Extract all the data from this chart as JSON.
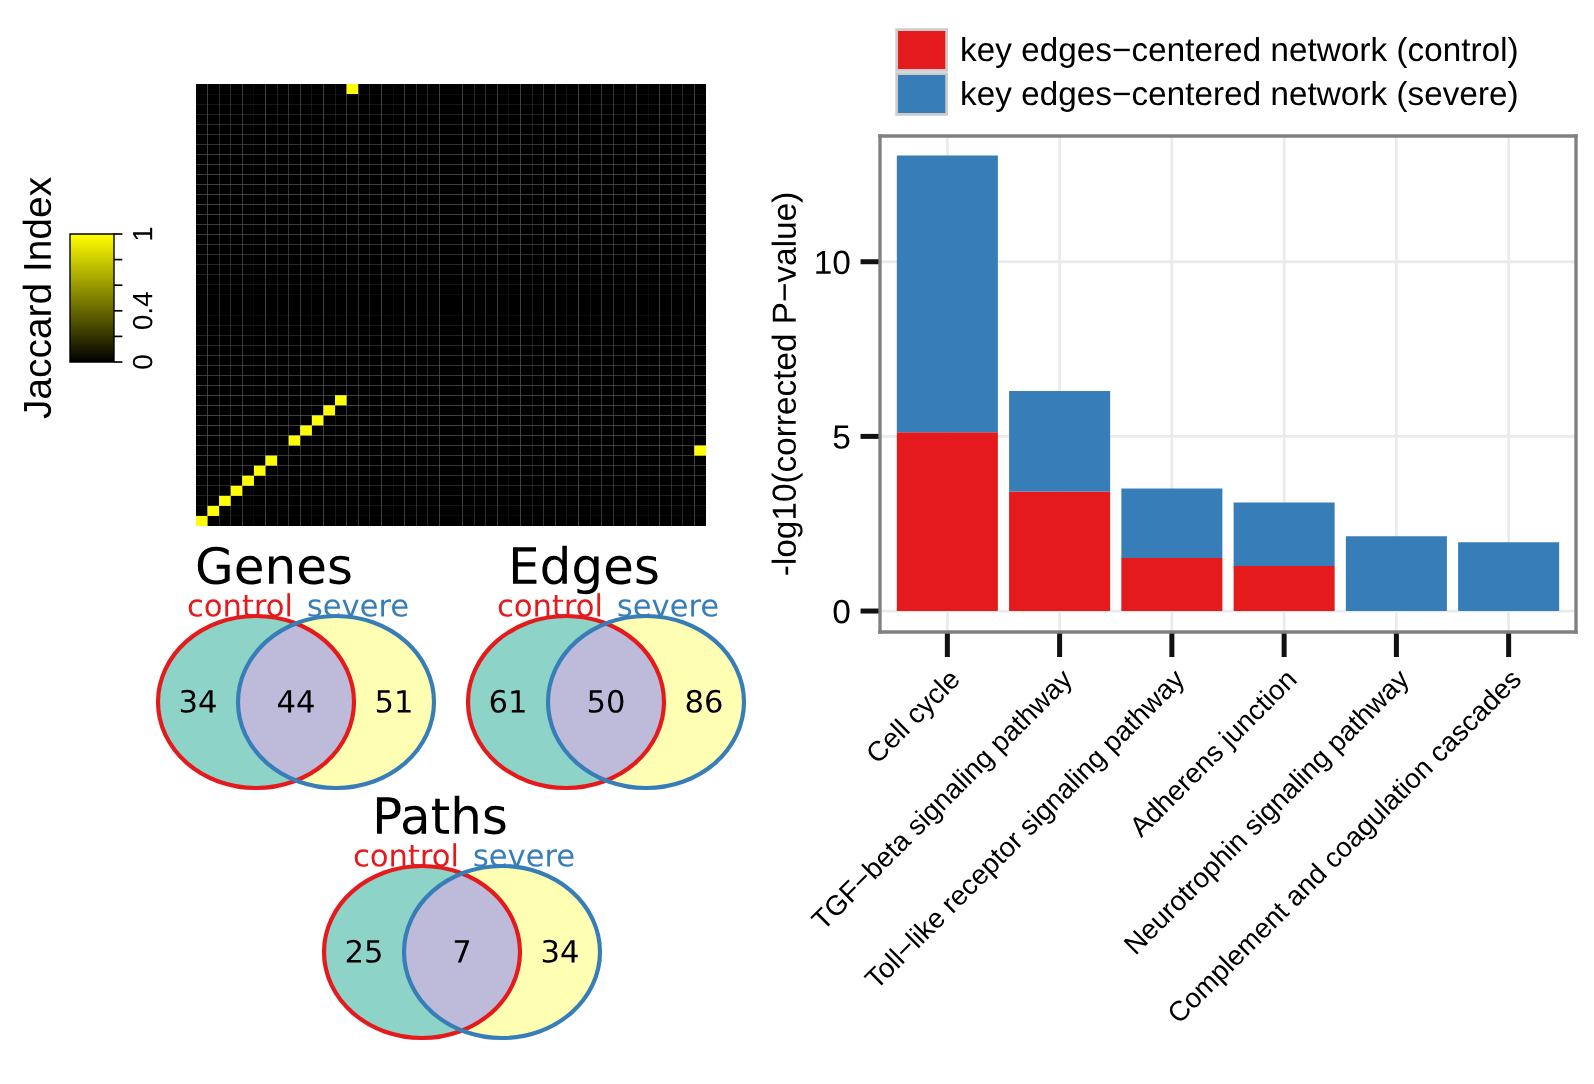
{
  "chart_data": [
    {
      "type": "heatmap",
      "clabel": "Jaccard Index",
      "colors": [
        "#000000",
        "#ffff00"
      ],
      "clim": [
        0,
        1
      ],
      "cticks": [
        0,
        {
          "value": 0.2,
          "label": null
        },
        0.4,
        {
          "value": 0.6,
          "label": null
        },
        {
          "value": 0.8,
          "label": null
        },
        1
      ],
      "categories": [
        null,
        null,
        null,
        null,
        null,
        null,
        null,
        null,
        null,
        null,
        null,
        null,
        null,
        null,
        null,
        null,
        null,
        null,
        null,
        null,
        null,
        null,
        null,
        null,
        null,
        null,
        null,
        null,
        null,
        null,
        null,
        null,
        null,
        null,
        null,
        null,
        null,
        null,
        null,
        null,
        null,
        null,
        null,
        null
      ],
      "y_categories": [
        null,
        null,
        null,
        null,
        null,
        null,
        null,
        null,
        null,
        null,
        null,
        null,
        null,
        null,
        null,
        null,
        null,
        null,
        null,
        null,
        null,
        null,
        null,
        null,
        null,
        null,
        null,
        null,
        null,
        null,
        null,
        null,
        null,
        null,
        null,
        null,
        null,
        null,
        null,
        null,
        null,
        null,
        null,
        null
      ],
      "cells": [
        [
          0,
          0,
          0,
          0,
          0,
          0,
          0,
          0,
          0,
          0,
          0,
          0,
          0,
          1,
          0,
          0,
          0,
          0,
          0,
          0,
          0,
          0,
          0,
          0,
          0,
          0,
          0,
          0,
          0,
          0,
          0,
          0,
          0,
          0,
          0,
          0,
          0,
          0,
          0,
          0,
          0,
          0,
          0,
          0
        ],
        [
          0,
          0,
          0,
          0,
          0,
          0,
          0,
          0,
          0,
          0,
          0,
          0,
          0,
          0,
          0,
          0,
          0,
          0,
          0,
          0,
          0,
          0,
          0,
          0,
          0,
          0,
          0,
          0,
          0,
          0,
          0,
          0,
          0,
          0,
          0,
          0,
          0,
          0,
          0,
          0,
          0,
          0,
          0,
          0
        ],
        [
          0,
          0,
          0,
          0,
          0,
          0,
          0,
          0,
          0,
          0,
          0,
          0,
          0,
          0,
          0,
          0,
          0,
          0,
          0,
          0,
          0,
          0,
          0,
          0,
          0,
          0,
          0,
          0,
          0,
          0,
          0,
          0,
          0,
          0,
          0,
          0,
          0,
          0,
          0,
          0,
          0,
          0,
          0,
          0
        ],
        [
          0,
          0,
          0,
          0,
          0,
          0,
          0,
          0,
          0,
          0,
          0,
          0,
          0,
          0,
          0,
          0,
          0,
          0,
          0,
          0,
          0,
          0,
          0,
          0,
          0,
          0,
          0,
          0,
          0,
          0,
          0,
          0,
          0,
          0,
          0,
          0,
          0,
          0,
          0,
          0,
          0,
          0,
          0,
          0
        ],
        [
          0,
          0,
          0,
          0,
          0,
          0,
          0,
          0,
          0,
          0,
          0,
          0,
          0,
          0,
          0,
          0,
          0,
          0,
          0,
          0,
          0,
          0,
          0,
          0,
          0,
          0,
          0,
          0,
          0,
          0,
          0,
          0,
          0,
          0,
          0,
          0,
          0,
          0,
          0,
          0,
          0,
          0,
          0,
          0
        ],
        [
          0,
          0,
          0,
          0,
          0,
          0,
          0,
          0,
          0,
          0,
          0,
          0,
          0,
          0,
          0,
          0,
          0,
          0,
          0,
          0,
          0,
          0,
          0,
          0,
          0,
          0,
          0,
          0,
          0,
          0,
          0,
          0,
          0,
          0,
          0,
          0,
          0,
          0,
          0,
          0,
          0,
          0,
          0,
          0
        ],
        [
          0,
          0,
          0,
          0,
          0,
          0,
          0,
          0,
          0,
          0,
          0,
          0,
          0,
          0,
          0,
          0,
          0,
          0,
          0,
          0,
          0,
          0,
          0,
          0,
          0,
          0,
          0,
          0,
          0,
          0,
          0,
          0,
          0,
          0,
          0,
          0,
          0,
          0,
          0,
          0,
          0,
          0,
          0,
          0
        ],
        [
          0,
          0,
          0,
          0,
          0,
          0,
          0,
          0,
          0,
          0,
          0,
          0,
          0,
          0,
          0,
          0,
          0,
          0,
          0,
          0,
          0,
          0,
          0,
          0,
          0,
          0,
          0,
          0,
          0,
          0,
          0,
          0,
          0,
          0,
          0,
          0,
          0,
          0,
          0,
          0,
          0,
          0,
          0,
          0
        ],
        [
          0,
          0,
          0,
          0,
          0,
          0,
          0,
          0,
          0,
          0,
          0,
          0,
          0,
          0,
          0,
          0,
          0,
          0,
          0,
          0,
          0,
          0,
          0,
          0,
          0,
          0,
          0,
          0,
          0,
          0,
          0,
          0,
          0,
          0,
          0,
          0,
          0,
          0,
          0,
          0,
          0,
          0,
          0,
          0
        ],
        [
          0,
          0,
          0,
          0,
          0,
          0,
          0,
          0,
          0,
          0,
          0,
          0,
          0,
          0,
          0,
          0,
          0,
          0,
          0,
          0,
          0,
          0,
          0,
          0,
          0,
          0,
          0,
          0,
          0,
          0,
          0,
          0,
          0,
          0,
          0,
          0,
          0,
          0,
          0,
          0,
          0,
          0,
          0,
          0
        ],
        [
          0,
          0,
          0,
          0,
          0,
          0,
          0,
          0,
          0,
          0,
          0,
          0,
          0,
          0,
          0,
          0,
          0,
          0,
          0,
          0,
          0,
          0,
          0,
          0,
          0,
          0,
          0,
          0,
          0,
          0,
          0,
          0,
          0,
          0,
          0,
          0,
          0,
          0,
          0,
          0,
          0,
          0,
          0,
          0
        ],
        [
          0,
          0,
          0,
          0,
          0,
          0,
          0,
          0,
          0,
          0,
          0,
          0,
          0,
          0,
          0,
          0,
          0,
          0,
          0,
          0,
          0,
          0,
          0,
          0,
          0,
          0,
          0,
          0,
          0,
          0,
          0,
          0,
          0,
          0,
          0,
          0,
          0,
          0,
          0,
          0,
          0,
          0,
          0,
          0
        ],
        [
          0,
          0,
          0,
          0,
          0,
          0,
          0,
          0,
          0,
          0,
          0,
          0,
          0,
          0,
          0,
          0,
          0,
          0,
          0,
          0,
          0,
          0,
          0,
          0,
          0,
          0,
          0,
          0,
          0,
          0,
          0,
          0,
          0,
          0,
          0,
          0,
          0,
          0,
          0,
          0,
          0,
          0,
          0,
          0
        ],
        [
          0,
          0,
          0,
          0,
          0,
          0,
          0,
          0,
          0,
          0,
          0,
          0,
          0,
          0,
          0,
          0,
          0,
          0,
          0,
          0,
          0,
          0,
          0,
          0,
          0,
          0,
          0,
          0,
          0,
          0,
          0,
          0,
          0,
          0,
          0,
          0,
          0,
          0,
          0,
          0,
          0,
          0,
          0,
          0
        ],
        [
          0,
          0,
          0,
          0,
          0,
          0,
          0,
          0,
          0,
          0,
          0,
          0,
          0,
          0,
          0,
          0,
          0,
          0,
          0,
          0,
          0,
          0,
          0,
          0,
          0,
          0,
          0,
          0,
          0,
          0,
          0,
          0,
          0,
          0,
          0,
          0,
          0,
          0,
          0,
          0,
          0,
          0,
          0,
          0
        ],
        [
          0,
          0,
          0,
          0,
          0,
          0,
          0,
          0,
          0,
          0,
          0,
          0,
          0,
          0,
          0,
          0,
          0,
          0,
          0,
          0,
          0,
          0,
          0,
          0,
          0,
          0,
          0,
          0,
          0,
          0,
          0,
          0,
          0,
          0,
          0,
          0,
          0,
          0,
          0,
          0,
          0,
          0,
          0,
          0
        ],
        [
          0,
          0,
          0,
          0,
          0,
          0,
          0,
          0,
          0,
          0,
          0,
          0,
          0,
          0,
          0,
          0,
          0,
          0,
          0,
          0,
          0,
          0,
          0,
          0,
          0,
          0,
          0,
          0,
          0,
          0,
          0,
          0,
          0,
          0,
          0,
          0,
          0,
          0,
          0,
          0,
          0,
          0,
          0,
          0
        ],
        [
          0,
          0,
          0,
          0,
          0,
          0,
          0,
          0,
          0,
          0,
          0,
          0,
          0,
          0,
          0,
          0,
          0,
          0,
          0,
          0,
          0,
          0,
          0,
          0,
          0,
          0,
          0,
          0,
          0,
          0,
          0,
          0,
          0,
          0,
          0,
          0,
          0,
          0,
          0,
          0,
          0,
          0,
          0,
          0
        ],
        [
          0,
          0,
          0,
          0,
          0,
          0,
          0,
          0,
          0,
          0,
          0,
          0,
          0,
          0,
          0,
          0,
          0,
          0,
          0,
          0,
          0,
          0,
          0,
          0,
          0,
          0,
          0,
          0,
          0,
          0,
          0,
          0,
          0,
          0,
          0,
          0,
          0,
          0,
          0,
          0,
          0,
          0,
          0,
          0
        ],
        [
          0,
          0,
          0,
          0,
          0,
          0,
          0,
          0,
          0,
          0,
          0,
          0,
          0,
          0,
          0,
          0,
          0,
          0,
          0,
          0,
          0,
          0,
          0,
          0,
          0,
          0,
          0,
          0,
          0,
          0,
          0,
          0,
          0,
          0,
          0,
          0,
          0,
          0,
          0,
          0,
          0,
          0,
          0,
          0
        ],
        [
          0,
          0,
          0,
          0,
          0,
          0,
          0,
          0,
          0,
          0,
          0,
          0,
          0,
          0,
          0,
          0,
          0,
          0,
          0,
          0,
          0,
          0,
          0,
          0,
          0,
          0,
          0,
          0,
          0,
          0,
          0,
          0,
          0,
          0,
          0,
          0,
          0,
          0,
          0,
          0,
          0,
          0,
          0,
          0
        ],
        [
          0,
          0,
          0,
          0,
          0,
          0,
          0,
          0,
          0,
          0,
          0,
          0,
          0,
          0,
          0,
          0,
          0,
          0,
          0,
          0,
          0,
          0,
          0,
          0,
          0,
          0,
          0,
          0,
          0,
          0,
          0,
          0,
          0,
          0,
          0,
          0,
          0,
          0,
          0,
          0,
          0,
          0,
          0,
          0
        ],
        [
          0,
          0,
          0,
          0,
          0,
          0,
          0,
          0,
          0,
          0,
          0,
          0,
          0,
          0,
          0,
          0,
          0,
          0,
          0,
          0,
          0,
          0,
          0,
          0,
          0,
          0,
          0,
          0,
          0,
          0,
          0,
          0,
          0,
          0,
          0,
          0,
          0,
          0,
          0,
          0,
          0,
          0,
          0,
          0
        ],
        [
          0,
          0,
          0,
          0,
          0,
          0,
          0,
          0,
          0,
          0,
          0,
          0,
          0,
          0,
          0,
          0,
          0,
          0,
          0,
          0,
          0,
          0,
          0,
          0,
          0,
          0,
          0,
          0,
          0,
          0,
          0,
          0,
          0,
          0,
          0,
          0,
          0,
          0,
          0,
          0,
          0,
          0,
          0,
          0
        ],
        [
          0,
          0,
          0,
          0,
          0,
          0,
          0,
          0,
          0,
          0,
          0,
          0,
          0,
          0,
          0,
          0,
          0,
          0,
          0,
          0,
          0,
          0,
          0,
          0,
          0,
          0,
          0,
          0,
          0,
          0,
          0,
          0,
          0,
          0,
          0,
          0,
          0,
          0,
          0,
          0,
          0,
          0,
          0,
          0
        ],
        [
          0,
          0,
          0,
          0,
          0,
          0,
          0,
          0,
          0,
          0,
          0,
          0,
          0,
          0,
          0,
          0,
          0,
          0,
          0,
          0,
          0,
          0,
          0,
          0,
          0,
          0,
          0,
          0,
          0,
          0,
          0,
          0,
          0,
          0,
          0,
          0,
          0,
          0,
          0,
          0,
          0,
          0,
          0,
          0
        ],
        [
          0,
          0,
          0,
          0,
          0,
          0,
          0,
          0,
          0,
          0,
          0,
          0,
          0,
          0,
          0,
          0,
          0,
          0,
          0,
          0,
          0,
          0,
          0,
          0,
          0,
          0,
          0,
          0,
          0,
          0,
          0,
          0,
          0,
          0,
          0,
          0,
          0,
          0,
          0,
          0,
          0,
          0,
          0,
          0
        ],
        [
          0,
          0,
          0,
          0,
          0,
          0,
          0,
          0,
          0,
          0,
          0,
          0,
          0,
          0,
          0,
          0,
          0,
          0,
          0,
          0,
          0,
          0,
          0,
          0,
          0,
          0,
          0,
          0,
          0,
          0,
          0,
          0,
          0,
          0,
          0,
          0,
          0,
          0,
          0,
          0,
          0,
          0,
          0,
          0
        ],
        [
          0,
          0,
          0,
          0,
          0,
          0,
          0,
          0,
          0,
          0,
          0,
          0,
          0,
          0,
          0,
          0,
          0,
          0,
          0,
          0,
          0,
          0,
          0,
          0,
          0,
          0,
          0,
          0,
          0,
          0,
          0,
          0,
          0,
          0,
          0,
          0,
          0,
          0,
          0,
          0,
          0,
          0,
          0,
          0
        ],
        [
          0,
          0,
          0,
          0,
          0,
          0,
          0,
          0,
          0,
          0,
          0,
          0,
          0,
          0,
          0,
          0,
          0,
          0,
          0,
          0,
          0,
          0,
          0,
          0,
          0,
          0,
          0,
          0,
          0,
          0,
          0,
          0,
          0,
          0,
          0,
          0,
          0,
          0,
          0,
          0,
          0,
          0,
          0,
          0
        ],
        [
          0,
          0,
          0,
          0,
          0,
          0,
          0,
          0,
          0,
          0,
          0,
          0,
          0,
          0,
          0,
          0,
          0,
          0,
          0,
          0,
          0,
          0,
          0,
          0,
          0,
          0,
          0,
          0,
          0,
          0,
          0,
          0,
          0,
          0,
          0,
          0,
          0,
          0,
          0,
          0,
          0,
          0,
          0,
          0
        ],
        [
          0,
          0,
          0,
          0,
          0,
          0,
          0,
          0,
          0,
          0,
          0,
          0,
          1,
          0,
          0,
          0,
          0,
          0,
          0,
          0,
          0,
          0,
          0,
          0,
          0,
          0,
          0,
          0,
          0,
          0,
          0,
          0,
          0,
          0,
          0,
          0,
          0,
          0,
          0,
          0,
          0,
          0,
          0,
          0
        ],
        [
          0,
          0,
          0,
          0,
          0,
          0,
          0,
          0,
          0,
          0,
          0,
          1,
          0,
          0,
          0,
          0,
          0,
          0,
          0,
          0,
          0,
          0,
          0,
          0,
          0,
          0,
          0,
          0,
          0,
          0,
          0,
          0,
          0,
          0,
          0,
          0,
          0,
          0,
          0,
          0,
          0,
          0,
          0,
          0
        ],
        [
          0,
          0,
          0,
          0,
          0,
          0,
          0,
          0,
          0,
          0,
          1,
          0,
          0,
          0,
          0,
          0,
          0,
          0,
          0,
          0,
          0,
          0,
          0,
          0,
          0,
          0,
          0,
          0,
          0,
          0,
          0,
          0,
          0,
          0,
          0,
          0,
          0,
          0,
          0,
          0,
          0,
          0,
          0,
          0
        ],
        [
          0,
          0,
          0,
          0,
          0,
          0,
          0,
          0,
          0,
          1,
          0,
          0,
          0,
          0,
          0,
          0,
          0,
          0,
          0,
          0,
          0,
          0,
          0,
          0,
          0,
          0,
          0,
          0,
          0,
          0,
          0,
          0,
          0,
          0,
          0,
          0,
          0,
          0,
          0,
          0,
          0,
          0,
          0,
          0
        ],
        [
          0,
          0,
          0,
          0,
          0,
          0,
          0,
          0,
          1,
          0,
          0,
          0,
          0,
          0,
          0,
          0,
          0,
          0,
          0,
          0,
          0,
          0,
          0,
          0,
          0,
          0,
          0,
          0,
          0,
          0,
          0,
          0,
          0,
          0,
          0,
          0,
          0,
          0,
          0,
          0,
          0,
          0,
          0,
          0
        ],
        [
          0,
          0,
          0,
          0,
          0,
          0,
          0,
          0,
          0,
          0,
          0,
          0,
          0,
          0,
          0,
          0,
          0,
          0,
          0,
          0,
          0,
          0,
          0,
          0,
          0,
          0,
          0,
          0,
          0,
          0,
          0,
          0,
          0,
          0,
          0,
          0,
          0,
          0,
          0,
          0,
          0,
          0,
          0,
          1
        ],
        [
          0,
          0,
          0,
          0,
          0,
          0,
          1,
          0,
          0,
          0,
          0,
          0,
          0,
          0,
          0,
          0,
          0,
          0,
          0,
          0,
          0,
          0,
          0,
          0,
          0,
          0,
          0,
          0,
          0,
          0,
          0,
          0,
          0,
          0,
          0,
          0,
          0,
          0,
          0,
          0,
          0,
          0,
          0,
          0
        ],
        [
          0,
          0,
          0,
          0,
          0,
          1,
          0,
          0,
          0,
          0,
          0,
          0,
          0,
          0,
          0,
          0,
          0,
          0,
          0,
          0,
          0,
          0,
          0,
          0,
          0,
          0,
          0,
          0,
          0,
          0,
          0,
          0,
          0,
          0,
          0,
          0,
          0,
          0,
          0,
          0,
          0,
          0,
          0,
          0
        ],
        [
          0,
          0,
          0,
          0,
          1,
          0,
          0,
          0,
          0,
          0,
          0,
          0,
          0,
          0,
          0,
          0,
          0,
          0,
          0,
          0,
          0,
          0,
          0,
          0,
          0,
          0,
          0,
          0,
          0,
          0,
          0,
          0,
          0,
          0,
          0,
          0,
          0,
          0,
          0,
          0,
          0,
          0,
          0,
          0
        ],
        [
          0,
          0,
          0,
          1,
          0,
          0,
          0,
          0,
          0,
          0,
          0,
          0,
          0,
          0,
          0,
          0,
          0,
          0,
          0,
          0,
          0,
          0,
          0,
          0,
          0,
          0,
          0,
          0,
          0,
          0,
          0,
          0,
          0,
          0,
          0,
          0,
          0,
          0,
          0,
          0,
          0,
          0,
          0,
          0
        ],
        [
          0,
          0,
          1,
          0,
          0,
          0,
          0,
          0,
          0,
          0,
          0,
          0,
          0,
          0,
          0,
          0,
          0,
          0,
          0,
          0,
          0,
          0,
          0,
          0,
          0,
          0,
          0,
          0,
          0,
          0,
          0,
          0,
          0,
          0,
          0,
          0,
          0,
          0,
          0,
          0,
          0,
          0,
          0,
          0
        ],
        [
          0,
          1,
          0,
          0,
          0,
          0,
          0,
          0,
          0,
          0,
          0,
          0,
          0,
          0,
          0,
          0,
          0,
          0,
          0,
          0,
          0,
          0,
          0,
          0,
          0,
          0,
          0,
          0,
          0,
          0,
          0,
          0,
          0,
          0,
          0,
          0,
          0,
          0,
          0,
          0,
          0,
          0,
          0,
          0
        ],
        [
          1,
          0,
          0,
          0,
          0,
          0,
          0,
          0,
          0,
          0,
          0,
          0,
          0,
          0,
          0,
          0,
          0,
          0,
          0,
          0,
          0,
          0,
          0,
          0,
          0,
          0,
          0,
          0,
          0,
          0,
          0,
          0,
          0,
          0,
          0,
          0,
          0,
          0,
          0,
          0,
          0,
          0,
          0,
          0
        ]
      ]
    },
    {
      "type": "other",
      "title": "Genes",
      "annotations": [
        "34",
        "44",
        "51"
      ],
      "colors": [
        "#8dd3c7",
        "#bebada",
        "#ffffb3"
      ],
      "series": [
        {
          "name": "control",
          "color": "#e41a1c"
        },
        {
          "name": "severe",
          "color": "#377eb8"
        }
      ]
    },
    {
      "type": "other",
      "title": "Edges",
      "annotations": [
        "61",
        "50",
        "86"
      ],
      "colors": [
        "#8dd3c7",
        "#bebada",
        "#ffffb3"
      ],
      "series": [
        {
          "name": "control",
          "color": "#e41a1c"
        },
        {
          "name": "severe",
          "color": "#377eb8"
        }
      ]
    },
    {
      "type": "other",
      "title": "Paths",
      "annotations": [
        "25",
        "7",
        "34"
      ],
      "colors": [
        "#8dd3c7",
        "#bebada",
        "#ffffb3"
      ],
      "series": [
        {
          "name": "control",
          "color": "#e41a1c"
        },
        {
          "name": "severe",
          "color": "#377eb8"
        }
      ]
    },
    {
      "type": "bar",
      "stacked": true,
      "ylabel": "-log10(corrected P−value)",
      "ylim": [
        -0.6,
        13.6
      ],
      "yticks": [
        0,
        5,
        10
      ],
      "grid": true,
      "legend": "top",
      "categories": [
        "Cell cycle",
        "TGF−beta signaling pathway",
        "Toll−like receptor signaling pathway",
        "Adherens junction",
        "Neurotrophin signaling pathway",
        "Complement and coagulation cascades"
      ],
      "series": [
        {
          "name": "key edges−centered network (control)",
          "color": "#e41a1c",
          "values": [
            5.12,
            3.42,
            1.52,
            1.29,
            null,
            null
          ]
        },
        {
          "name": "key edges−centered network (severe)",
          "color": "#377eb8",
          "values": [
            7.92,
            2.88,
            1.99,
            1.82,
            2.14,
            1.97
          ]
        }
      ]
    }
  ]
}
